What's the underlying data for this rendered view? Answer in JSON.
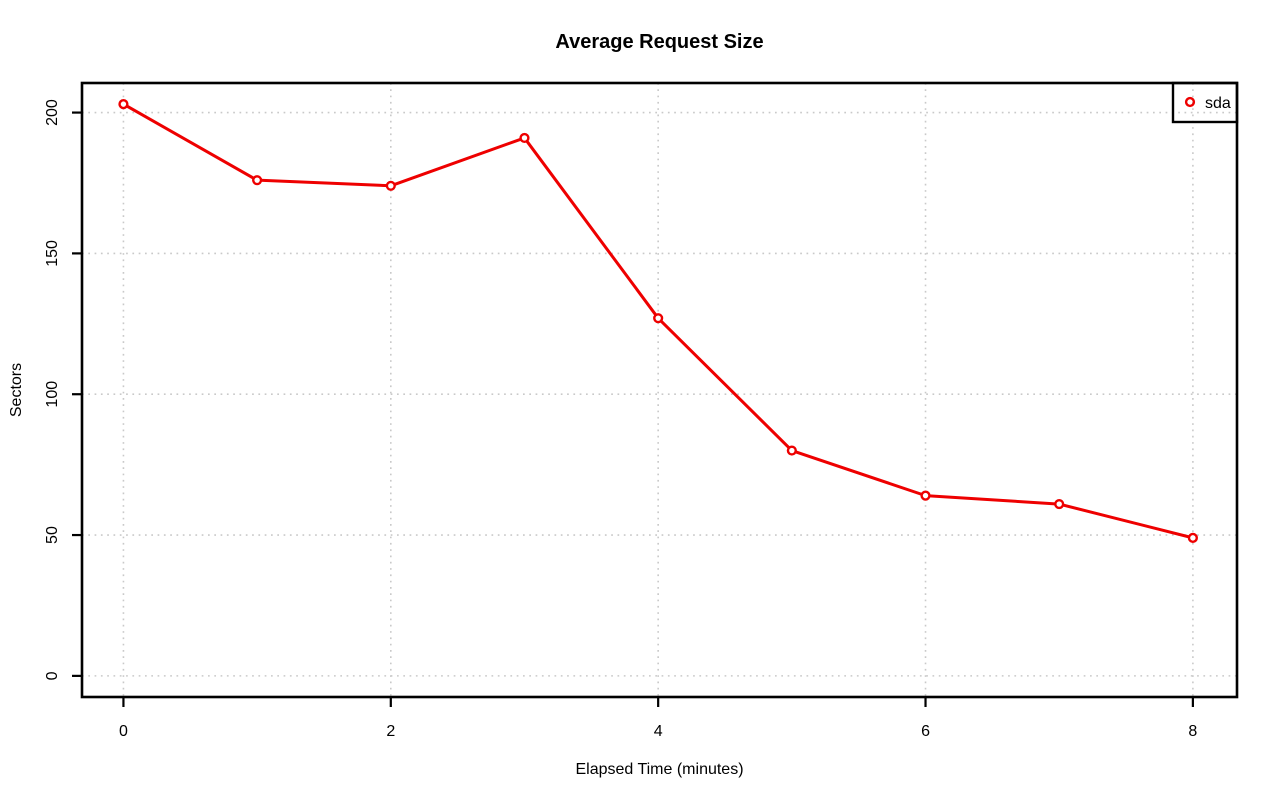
{
  "chart_data": {
    "type": "line",
    "title": "Average Request Size",
    "xlabel": "Elapsed Time (minutes)",
    "ylabel": "Sectors",
    "x": [
      0,
      1,
      2,
      3,
      4,
      5,
      6,
      7,
      8
    ],
    "series": [
      {
        "name": "sda",
        "color": "#EE0000",
        "marker": "open-circle",
        "values": [
          203,
          176,
          174,
          191,
          127,
          80,
          64,
          61,
          49
        ]
      }
    ],
    "xticks": [
      0,
      2,
      4,
      6,
      8
    ],
    "yticks": [
      0,
      50,
      100,
      150,
      200
    ],
    "xlim": [
      -0.31,
      8.33
    ],
    "ylim": [
      -7.5,
      210.5
    ],
    "grid": true,
    "grid_style": "dotted",
    "grid_color": "#C9C9C9",
    "axis_color": "#000000",
    "background": "#FFFFFF",
    "legend": {
      "position": "top-right",
      "entries": [
        {
          "label": "sda",
          "color": "#EE0000",
          "marker": "open-circle"
        }
      ]
    }
  }
}
